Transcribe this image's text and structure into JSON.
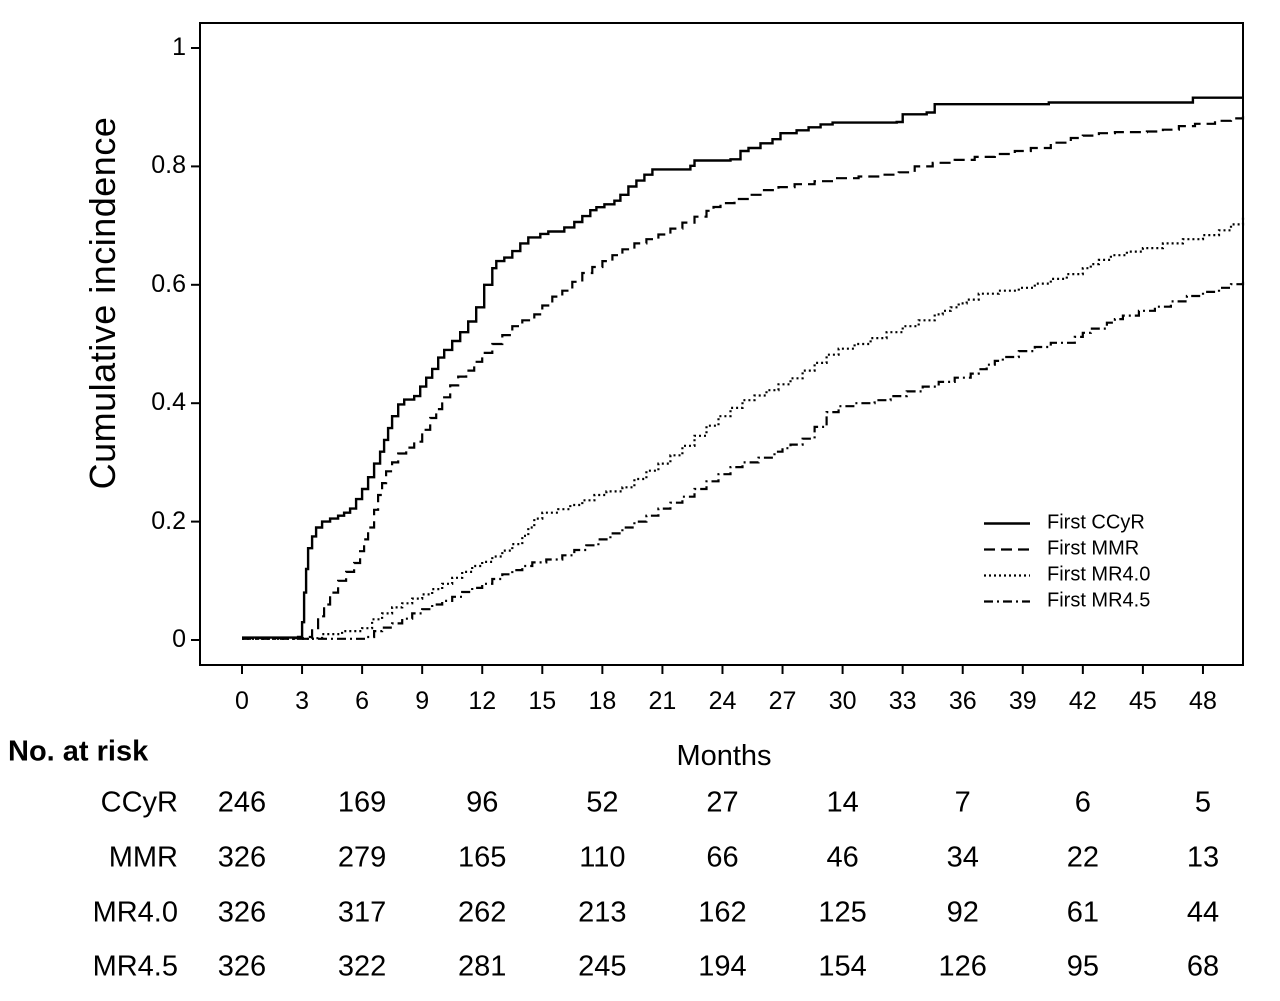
{
  "chart_data": {
    "type": "line",
    "subtype": "cumulative-incidence-step-curves",
    "title": "",
    "xlabel": "Months",
    "ylabel": "Cumulative incindence",
    "xlim": [
      0,
      50
    ],
    "ylim": [
      0,
      1
    ],
    "grid": false,
    "legend_position": "lower right",
    "xticks": [
      0,
      3,
      6,
      9,
      12,
      15,
      18,
      21,
      24,
      27,
      30,
      33,
      36,
      39,
      42,
      45,
      48
    ],
    "yticks": [
      0,
      0.2,
      0.4,
      0.6,
      0.8,
      1
    ],
    "line_color": "#000000",
    "series": [
      {
        "name": "First CCyR",
        "line": "solid",
        "points": [
          [
            0,
            0.004
          ],
          [
            2.8,
            0.005
          ],
          [
            3.0,
            0.03
          ],
          [
            3.1,
            0.08
          ],
          [
            3.2,
            0.12
          ],
          [
            3.3,
            0.155
          ],
          [
            3.5,
            0.175
          ],
          [
            3.7,
            0.19
          ],
          [
            4.0,
            0.2
          ],
          [
            4.4,
            0.205
          ],
          [
            4.8,
            0.21
          ],
          [
            5.1,
            0.215
          ],
          [
            5.4,
            0.222
          ],
          [
            5.7,
            0.238
          ],
          [
            6.0,
            0.255
          ],
          [
            6.3,
            0.275
          ],
          [
            6.6,
            0.298
          ],
          [
            6.9,
            0.318
          ],
          [
            7.1,
            0.338
          ],
          [
            7.3,
            0.358
          ],
          [
            7.5,
            0.378
          ],
          [
            7.8,
            0.398
          ],
          [
            8.1,
            0.406
          ],
          [
            8.6,
            0.412
          ],
          [
            8.9,
            0.428
          ],
          [
            9.2,
            0.443
          ],
          [
            9.5,
            0.458
          ],
          [
            9.8,
            0.477
          ],
          [
            10.1,
            0.49
          ],
          [
            10.5,
            0.505
          ],
          [
            10.9,
            0.52
          ],
          [
            11.3,
            0.538
          ],
          [
            11.7,
            0.562
          ],
          [
            12.1,
            0.6
          ],
          [
            12.5,
            0.628
          ],
          [
            12.7,
            0.64
          ],
          [
            13.1,
            0.646
          ],
          [
            13.5,
            0.657
          ],
          [
            13.9,
            0.67
          ],
          [
            14.3,
            0.68
          ],
          [
            14.9,
            0.686
          ],
          [
            15.3,
            0.69
          ],
          [
            16.1,
            0.697
          ],
          [
            16.6,
            0.706
          ],
          [
            17.0,
            0.716
          ],
          [
            17.4,
            0.726
          ],
          [
            17.7,
            0.731
          ],
          [
            18.1,
            0.736
          ],
          [
            18.6,
            0.742
          ],
          [
            18.9,
            0.752
          ],
          [
            19.3,
            0.766
          ],
          [
            19.7,
            0.776
          ],
          [
            20.1,
            0.786
          ],
          [
            20.5,
            0.795
          ],
          [
            22.4,
            0.801
          ],
          [
            22.6,
            0.81
          ],
          [
            24.4,
            0.812
          ],
          [
            24.9,
            0.826
          ],
          [
            25.3,
            0.831
          ],
          [
            25.9,
            0.839
          ],
          [
            26.5,
            0.846
          ],
          [
            26.9,
            0.856
          ],
          [
            27.7,
            0.861
          ],
          [
            28.3,
            0.866
          ],
          [
            28.9,
            0.871
          ],
          [
            29.5,
            0.874
          ],
          [
            32.7,
            0.875
          ],
          [
            33.0,
            0.888
          ],
          [
            34.2,
            0.891
          ],
          [
            34.6,
            0.905
          ],
          [
            40.0,
            0.905
          ],
          [
            40.3,
            0.908
          ],
          [
            47.0,
            0.908
          ],
          [
            47.5,
            0.916
          ],
          [
            50,
            0.916
          ]
        ]
      },
      {
        "name": "First MMR",
        "line": "dashed",
        "points": [
          [
            0,
            0.003
          ],
          [
            3.2,
            0.005
          ],
          [
            3.5,
            0.02
          ],
          [
            3.8,
            0.04
          ],
          [
            4.1,
            0.06
          ],
          [
            4.4,
            0.08
          ],
          [
            4.8,
            0.1
          ],
          [
            5.2,
            0.115
          ],
          [
            5.6,
            0.13
          ],
          [
            5.9,
            0.15
          ],
          [
            6.1,
            0.17
          ],
          [
            6.3,
            0.19
          ],
          [
            6.6,
            0.22
          ],
          [
            6.8,
            0.245
          ],
          [
            7.0,
            0.265
          ],
          [
            7.2,
            0.285
          ],
          [
            7.5,
            0.3
          ],
          [
            7.8,
            0.315
          ],
          [
            8.2,
            0.325
          ],
          [
            8.6,
            0.335
          ],
          [
            9.0,
            0.355
          ],
          [
            9.4,
            0.375
          ],
          [
            9.7,
            0.39
          ],
          [
            10.0,
            0.41
          ],
          [
            10.4,
            0.43
          ],
          [
            10.8,
            0.445
          ],
          [
            11.2,
            0.455
          ],
          [
            11.6,
            0.47
          ],
          [
            12.0,
            0.485
          ],
          [
            12.5,
            0.5
          ],
          [
            13.0,
            0.515
          ],
          [
            13.5,
            0.53
          ],
          [
            14.0,
            0.54
          ],
          [
            14.6,
            0.55
          ],
          [
            15.0,
            0.565
          ],
          [
            15.5,
            0.58
          ],
          [
            16.0,
            0.59
          ],
          [
            16.5,
            0.605
          ],
          [
            17.0,
            0.62
          ],
          [
            17.5,
            0.63
          ],
          [
            18.0,
            0.64
          ],
          [
            18.5,
            0.65
          ],
          [
            19.0,
            0.66
          ],
          [
            19.6,
            0.67
          ],
          [
            20.2,
            0.677
          ],
          [
            20.8,
            0.685
          ],
          [
            21.4,
            0.695
          ],
          [
            22.0,
            0.705
          ],
          [
            22.6,
            0.715
          ],
          [
            23.2,
            0.725
          ],
          [
            23.9,
            0.738
          ],
          [
            24.6,
            0.745
          ],
          [
            25.4,
            0.752
          ],
          [
            26.0,
            0.76
          ],
          [
            26.8,
            0.765
          ],
          [
            27.6,
            0.77
          ],
          [
            28.6,
            0.775
          ],
          [
            29.6,
            0.78
          ],
          [
            30.8,
            0.783
          ],
          [
            32.0,
            0.786
          ],
          [
            32.8,
            0.79
          ],
          [
            33.6,
            0.8
          ],
          [
            34.5,
            0.806
          ],
          [
            35.6,
            0.811
          ],
          [
            36.6,
            0.816
          ],
          [
            37.6,
            0.821
          ],
          [
            38.6,
            0.826
          ],
          [
            39.4,
            0.831
          ],
          [
            40.4,
            0.84
          ],
          [
            41.4,
            0.848
          ],
          [
            42.0,
            0.852
          ],
          [
            42.8,
            0.856
          ],
          [
            43.6,
            0.858
          ],
          [
            45.2,
            0.859
          ],
          [
            46.0,
            0.862
          ],
          [
            46.8,
            0.868
          ],
          [
            47.6,
            0.872
          ],
          [
            48.6,
            0.877
          ],
          [
            49.4,
            0.881
          ],
          [
            50,
            0.885
          ]
        ]
      },
      {
        "name": "First MR4.0",
        "line": "dotted",
        "points": [
          [
            0,
            0.002
          ],
          [
            3.5,
            0.003
          ],
          [
            4.0,
            0.01
          ],
          [
            5.0,
            0.015
          ],
          [
            6.0,
            0.02
          ],
          [
            6.5,
            0.035
          ],
          [
            7.0,
            0.045
          ],
          [
            7.5,
            0.055
          ],
          [
            8.0,
            0.062
          ],
          [
            8.5,
            0.07
          ],
          [
            9.0,
            0.077
          ],
          [
            9.5,
            0.086
          ],
          [
            10.0,
            0.095
          ],
          [
            10.5,
            0.105
          ],
          [
            11.0,
            0.115
          ],
          [
            11.5,
            0.125
          ],
          [
            12.0,
            0.132
          ],
          [
            12.5,
            0.141
          ],
          [
            13.0,
            0.151
          ],
          [
            13.5,
            0.162
          ],
          [
            14.0,
            0.176
          ],
          [
            14.3,
            0.19
          ],
          [
            14.6,
            0.205
          ],
          [
            15.0,
            0.215
          ],
          [
            15.8,
            0.221
          ],
          [
            16.4,
            0.228
          ],
          [
            17.0,
            0.236
          ],
          [
            17.6,
            0.245
          ],
          [
            18.2,
            0.251
          ],
          [
            19.0,
            0.258
          ],
          [
            19.6,
            0.272
          ],
          [
            20.2,
            0.286
          ],
          [
            20.8,
            0.298
          ],
          [
            21.4,
            0.312
          ],
          [
            22.0,
            0.328
          ],
          [
            22.6,
            0.345
          ],
          [
            23.2,
            0.362
          ],
          [
            23.8,
            0.378
          ],
          [
            24.4,
            0.392
          ],
          [
            25.0,
            0.405
          ],
          [
            25.6,
            0.413
          ],
          [
            26.2,
            0.422
          ],
          [
            26.8,
            0.432
          ],
          [
            27.4,
            0.442
          ],
          [
            28.0,
            0.455
          ],
          [
            28.6,
            0.468
          ],
          [
            29.2,
            0.482
          ],
          [
            29.8,
            0.492
          ],
          [
            30.6,
            0.5
          ],
          [
            31.4,
            0.51
          ],
          [
            32.2,
            0.52
          ],
          [
            33.0,
            0.53
          ],
          [
            33.8,
            0.54
          ],
          [
            34.6,
            0.55
          ],
          [
            35.4,
            0.562
          ],
          [
            36.2,
            0.575
          ],
          [
            36.8,
            0.585
          ],
          [
            37.8,
            0.59
          ],
          [
            38.8,
            0.595
          ],
          [
            39.6,
            0.602
          ],
          [
            40.4,
            0.61
          ],
          [
            41.2,
            0.618
          ],
          [
            42.0,
            0.628
          ],
          [
            42.8,
            0.642
          ],
          [
            43.4,
            0.65
          ],
          [
            44.2,
            0.656
          ],
          [
            45.0,
            0.662
          ],
          [
            46.0,
            0.67
          ],
          [
            47.0,
            0.677
          ],
          [
            48.0,
            0.684
          ],
          [
            48.8,
            0.692
          ],
          [
            49.4,
            0.702
          ],
          [
            50,
            0.716
          ]
        ]
      },
      {
        "name": "First MR4.5",
        "line": "dashdot",
        "points": [
          [
            0,
            0.002
          ],
          [
            6.2,
            0.005
          ],
          [
            6.6,
            0.015
          ],
          [
            7.0,
            0.021
          ],
          [
            7.5,
            0.028
          ],
          [
            8.0,
            0.036
          ],
          [
            8.5,
            0.045
          ],
          [
            9.0,
            0.052
          ],
          [
            9.5,
            0.06
          ],
          [
            10.0,
            0.066
          ],
          [
            10.5,
            0.073
          ],
          [
            11.0,
            0.081
          ],
          [
            11.5,
            0.088
          ],
          [
            12.0,
            0.095
          ],
          [
            12.5,
            0.103
          ],
          [
            13.0,
            0.111
          ],
          [
            13.5,
            0.118
          ],
          [
            14.0,
            0.125
          ],
          [
            14.5,
            0.131
          ],
          [
            15.2,
            0.136
          ],
          [
            16.0,
            0.143
          ],
          [
            16.6,
            0.152
          ],
          [
            17.2,
            0.16
          ],
          [
            17.8,
            0.17
          ],
          [
            18.4,
            0.18
          ],
          [
            19.0,
            0.19
          ],
          [
            19.6,
            0.2
          ],
          [
            20.2,
            0.21
          ],
          [
            20.8,
            0.222
          ],
          [
            21.4,
            0.232
          ],
          [
            22.0,
            0.242
          ],
          [
            22.6,
            0.255
          ],
          [
            23.2,
            0.268
          ],
          [
            23.8,
            0.28
          ],
          [
            24.4,
            0.292
          ],
          [
            25.0,
            0.3
          ],
          [
            25.8,
            0.308
          ],
          [
            26.6,
            0.318
          ],
          [
            27.4,
            0.33
          ],
          [
            28.0,
            0.34
          ],
          [
            28.6,
            0.36
          ],
          [
            29.2,
            0.385
          ],
          [
            29.8,
            0.395
          ],
          [
            30.6,
            0.4
          ],
          [
            31.6,
            0.405
          ],
          [
            32.4,
            0.412
          ],
          [
            33.2,
            0.42
          ],
          [
            34.0,
            0.428
          ],
          [
            34.8,
            0.436
          ],
          [
            35.6,
            0.443
          ],
          [
            36.4,
            0.45
          ],
          [
            37.2,
            0.465
          ],
          [
            38.0,
            0.478
          ],
          [
            38.8,
            0.488
          ],
          [
            39.6,
            0.495
          ],
          [
            40.4,
            0.502
          ],
          [
            41.6,
            0.512
          ],
          [
            42.4,
            0.526
          ],
          [
            43.2,
            0.536
          ],
          [
            44.0,
            0.548
          ],
          [
            44.8,
            0.556
          ],
          [
            45.6,
            0.563
          ],
          [
            46.4,
            0.572
          ],
          [
            47.2,
            0.581
          ],
          [
            48.0,
            0.588
          ],
          [
            48.8,
            0.595
          ],
          [
            49.4,
            0.601
          ],
          [
            50,
            0.606
          ]
        ]
      }
    ]
  },
  "risk_table": {
    "header": "No. at risk",
    "column_months": [
      0,
      6,
      12,
      18,
      24,
      30,
      36,
      42,
      48
    ],
    "rows": [
      {
        "label": "CCyR",
        "values": [
          246,
          169,
          96,
          52,
          27,
          14,
          7,
          6,
          5
        ]
      },
      {
        "label": "MMR",
        "values": [
          326,
          279,
          165,
          110,
          66,
          46,
          34,
          22,
          13
        ]
      },
      {
        "label": "MR4.0",
        "values": [
          326,
          317,
          262,
          213,
          162,
          125,
          92,
          61,
          44
        ]
      },
      {
        "label": "MR4.5",
        "values": [
          326,
          322,
          281,
          245,
          194,
          154,
          126,
          95,
          68
        ]
      }
    ]
  }
}
